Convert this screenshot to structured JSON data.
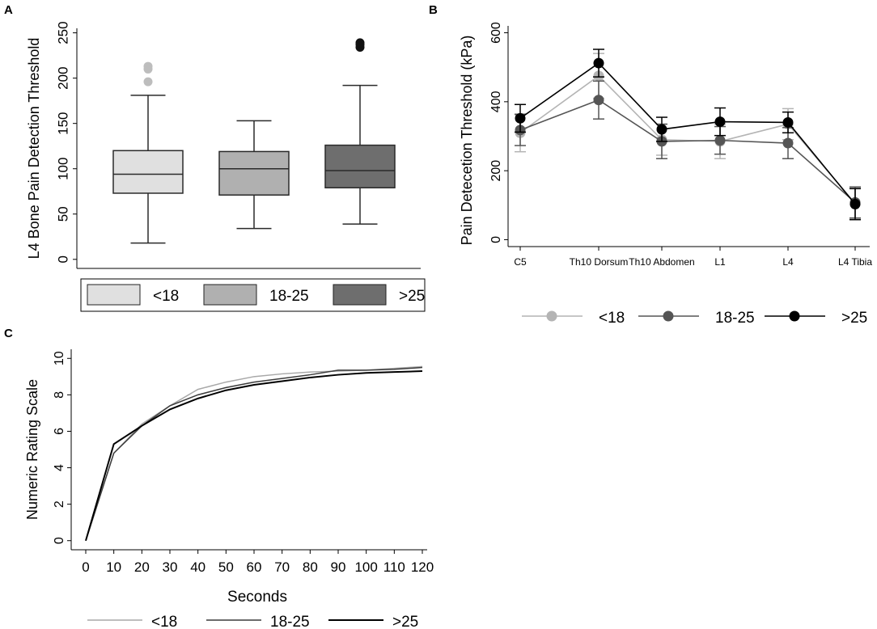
{
  "chart_data": [
    {
      "panel": "A",
      "type": "box",
      "ylabel": "L4 Bone Pain Detection Threshold",
      "ylim": [
        -10,
        255
      ],
      "yticks": [
        0,
        50,
        100,
        150,
        200,
        250
      ],
      "groups": [
        {
          "name": "<18",
          "color": "#e0e0e0",
          "whisker_low": 18,
          "q1": 73,
          "median": 94,
          "q3": 120,
          "whisker_high": 181,
          "outliers": [
            196,
            210,
            213
          ]
        },
        {
          "name": "18-25",
          "color": "#b0b0b0",
          "whisker_low": 34,
          "q1": 71,
          "median": 100,
          "q3": 119,
          "whisker_high": 153,
          "outliers": []
        },
        {
          "name": ">25",
          "color": "#6e6e6e",
          "whisker_low": 39,
          "q1": 79,
          "median": 98,
          "q3": 126,
          "whisker_high": 192,
          "outliers": [
            234,
            237,
            239
          ]
        }
      ],
      "legend": [
        "<18",
        "18-25",
        ">25"
      ]
    },
    {
      "panel": "B",
      "type": "line",
      "ylabel": "Pain Detecetion Threshold (kPa)",
      "ylim": [
        -20,
        620
      ],
      "yticks": [
        0,
        200,
        400,
        600
      ],
      "categories": [
        "C5",
        "Th10 Dorsum",
        "Th10 Abdomen",
        "L1",
        "L4",
        "L4 Tibia"
      ],
      "series": [
        {
          "name": "<18",
          "color": "#b4b4b4",
          "values": [
            310,
            475,
            290,
            285,
            335,
            105
          ],
          "err": [
            55,
            65,
            45,
            50,
            45,
            45
          ]
        },
        {
          "name": "18-25",
          "color": "#555555",
          "values": [
            318,
            405,
            285,
            288,
            280,
            108
          ],
          "err": [
            45,
            55,
            50,
            40,
            45,
            45
          ]
        },
        {
          "name": ">25",
          "color": "#000000",
          "values": [
            352,
            512,
            320,
            342,
            340,
            103
          ],
          "err": [
            40,
            40,
            35,
            40,
            30,
            45
          ]
        }
      ],
      "legend": [
        "<18",
        "18-25",
        ">25"
      ]
    },
    {
      "panel": "C",
      "type": "line",
      "xlabel": "Seconds",
      "ylabel": "Numeric Rating Scale",
      "ylim": [
        -0.5,
        10.5
      ],
      "yticks": [
        0,
        2,
        4,
        6,
        8,
        10
      ],
      "x": [
        0,
        10,
        20,
        30,
        40,
        50,
        60,
        70,
        80,
        90,
        100,
        110,
        120
      ],
      "series": [
        {
          "name": "<18",
          "color": "#a8a8a8",
          "values": [
            0,
            4.8,
            6.4,
            7.4,
            8.3,
            8.7,
            9.0,
            9.15,
            9.25,
            9.3,
            9.35,
            9.45,
            9.55
          ]
        },
        {
          "name": "18-25",
          "color": "#3c3c3c",
          "values": [
            0,
            4.8,
            6.3,
            7.4,
            8.0,
            8.4,
            8.7,
            8.9,
            9.1,
            9.35,
            9.35,
            9.4,
            9.5
          ]
        },
        {
          "name": ">25",
          "color": "#000000",
          "values": [
            0,
            5.3,
            6.3,
            7.2,
            7.8,
            8.25,
            8.55,
            8.75,
            8.95,
            9.1,
            9.2,
            9.25,
            9.3
          ]
        }
      ],
      "legend": [
        "<18",
        "18-25",
        ">25"
      ]
    }
  ]
}
